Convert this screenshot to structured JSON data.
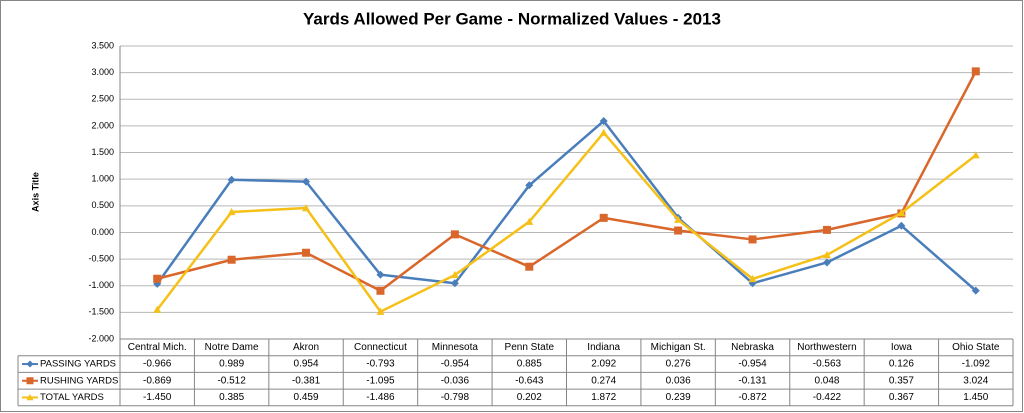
{
  "chart_data": {
    "type": "line",
    "title": "Yards Allowed Per Game - Normalized Values - 2013",
    "y_label": "Axis Title",
    "categories": [
      "Central Mich.",
      "Notre Dame",
      "Akron",
      "Connecticut",
      "Minnesota",
      "Penn State",
      "Indiana",
      "Michigan St.",
      "Nebraska",
      "Northwestern",
      "Iowa",
      "Ohio State"
    ],
    "series": [
      {
        "name": "PASSING YARDS",
        "color": "#4a7ebb",
        "marker": "diamond",
        "values": [
          -0.966,
          0.989,
          0.954,
          -0.793,
          -0.954,
          0.885,
          2.092,
          0.276,
          -0.954,
          -0.563,
          0.126,
          -1.092
        ],
        "value_labels": [
          "-0.966",
          "0.989",
          "0.954",
          "-0.793",
          "-0.954",
          "0.885",
          "2.092",
          "0.276",
          "-0.954",
          "-0.563",
          "0.126",
          "-1.092"
        ]
      },
      {
        "name": "RUSHING YARDS",
        "color": "#d9662a",
        "marker": "square",
        "values": [
          -0.869,
          -0.512,
          -0.381,
          -1.095,
          -0.036,
          -0.643,
          0.274,
          0.036,
          -0.131,
          0.048,
          0.357,
          3.024
        ],
        "value_labels": [
          "-0.869",
          "-0.512",
          "-0.381",
          "-1.095",
          "-0.036",
          "-0.643",
          "0.274",
          "0.036",
          "-0.131",
          "0.048",
          "0.357",
          "3.024"
        ]
      },
      {
        "name": "TOTAL YARDS",
        "color": "#f5c018",
        "marker": "triangle",
        "values": [
          -1.45,
          0.385,
          0.459,
          -1.486,
          -0.798,
          0.202,
          1.872,
          0.239,
          -0.872,
          -0.422,
          0.367,
          1.45
        ],
        "value_labels": [
          "-1.450",
          "0.385",
          "0.459",
          "-1.486",
          "-0.798",
          "0.202",
          "1.872",
          "0.239",
          "-0.872",
          "-0.422",
          "0.367",
          "1.450"
        ]
      }
    ],
    "ylim": [
      -2,
      3.5
    ],
    "yticks": [
      {
        "value": -2,
        "label": "-2.000"
      },
      {
        "value": -1.5,
        "label": "-1.500"
      },
      {
        "value": -1,
        "label": "-1.000"
      },
      {
        "value": -0.5,
        "label": "-0.500"
      },
      {
        "value": 0,
        "label": "0.000"
      },
      {
        "value": 0.5,
        "label": "0.500"
      },
      {
        "value": 1,
        "label": "1.000"
      },
      {
        "value": 1.5,
        "label": "1.500"
      },
      {
        "value": 2,
        "label": "2.000"
      },
      {
        "value": 2.5,
        "label": "2.500"
      },
      {
        "value": 3,
        "label": "3.000"
      },
      {
        "value": 3.5,
        "label": "3.500"
      }
    ],
    "grid": true
  }
}
